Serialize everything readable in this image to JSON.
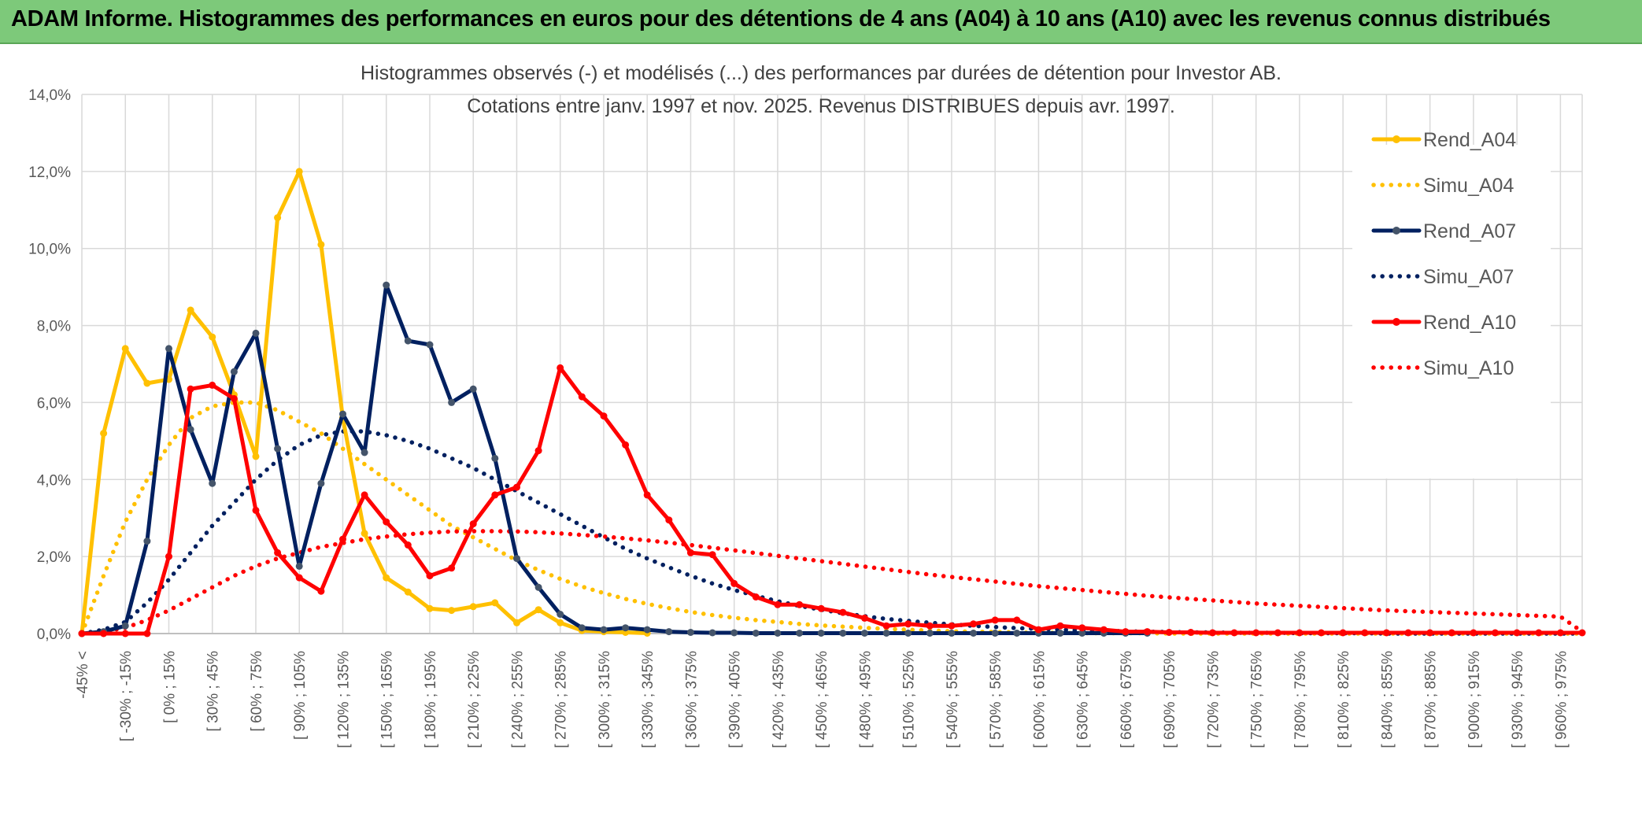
{
  "banner": {
    "title": "ADAM Informe. Histogrammes des performances en euros pour des détentions de 4 ans (A04) à 10 ans (A10) avec les revenus connus distribués"
  },
  "colors": {
    "banner_bg": "#7dc97a",
    "a04": "#ffc000",
    "a07": "#002060",
    "a07_marker": "#44546a",
    "a10": "#ff0000",
    "grid": "#d9d9d9"
  },
  "chart_data": {
    "type": "line",
    "title": "Histogrammes observés (-) et modélisés (...) des performances par durées de détention pour Investor AB.",
    "subtitle": "Cotations entre janv. 1997 et nov. 2025. Revenus DISTRIBUES depuis avr. 1997.",
    "xlabel": "",
    "ylabel": "",
    "ylim": [
      0,
      14
    ],
    "y_ticks": [
      "0,0%",
      "2,0%",
      "4,0%",
      "6,0%",
      "8,0%",
      "10,0%",
      "12,0%",
      "14,0%"
    ],
    "grid": true,
    "legend_position": "right",
    "x_tick_labels": [
      "-45% <",
      "[ -30% ; -15%",
      "[ 0% ; 15%",
      "[ 30% ; 45%",
      "[ 60% ; 75%",
      "[ 90% ; 105%",
      "[ 120% ; 135%",
      "[ 150% ; 165%",
      "[ 180% ; 195%",
      "[ 210% ; 225%",
      "[ 240% ; 255%",
      "[ 270% ; 285%",
      "[ 300% ; 315%",
      "[ 330% ; 345%",
      "[ 360% ; 375%",
      "[ 390% ; 405%",
      "[ 420% ; 435%",
      "[ 450% ; 465%",
      "[ 480% ; 495%",
      "[ 510% ; 525%",
      "[ 540% ; 555%",
      "[ 570% ; 585%",
      "[ 600% ; 615%",
      "[ 630% ; 645%",
      "[ 660% ; 675%",
      "[ 690% ; 705%",
      "[ 720% ; 735%",
      "[ 750% ; 765%",
      "[ 780% ; 795%",
      "[ 810% ; 825%",
      "[ 840% ; 855%",
      "[ 870% ; 885%",
      "[ 900% ; 915%",
      "[ 930% ; 945%",
      "[ 960% ; 975%"
    ],
    "num_categories": 70,
    "series": [
      {
        "name": "Rend_A04",
        "style": "solid",
        "color": "#ffc000",
        "values": [
          0,
          5.2,
          7.4,
          6.5,
          6.6,
          8.4,
          7.7,
          6.2,
          4.6,
          10.8,
          12.0,
          10.1,
          5.6,
          2.6,
          1.45,
          1.08,
          0.65,
          0.6,
          0.7,
          0.8,
          0.28,
          0.62,
          0.28,
          0.08,
          0.05,
          0.03,
          0.01
        ]
      },
      {
        "name": "Simu_A04",
        "style": "dotted",
        "color": "#ffc000",
        "values": [
          0,
          1.5,
          2.9,
          4.0,
          4.9,
          5.6,
          5.9,
          6.0,
          6.0,
          5.8,
          5.5,
          5.2,
          4.8,
          4.4,
          4.0,
          3.6,
          3.2,
          2.8,
          2.5,
          2.2,
          1.9,
          1.65,
          1.42,
          1.22,
          1.05,
          0.9,
          0.77,
          0.66,
          0.56,
          0.48,
          0.41,
          0.35,
          0.3,
          0.25,
          0.21,
          0.18,
          0.15,
          0.12,
          0.1,
          0.08,
          0.06,
          0.05,
          0.04,
          0.03,
          0.02,
          0.02,
          0.01,
          0.01,
          0.01,
          0.01,
          0,
          0,
          0,
          0,
          0,
          0,
          0,
          0,
          0,
          0,
          0,
          0,
          0,
          0,
          0,
          0,
          0,
          0,
          0,
          0
        ]
      },
      {
        "name": "Rend_A07",
        "style": "solid",
        "color": "#002060",
        "values": [
          0,
          0.05,
          0.2,
          2.4,
          7.4,
          5.3,
          3.9,
          6.8,
          7.8,
          4.8,
          1.75,
          3.9,
          5.7,
          4.7,
          9.05,
          7.6,
          7.5,
          6.0,
          6.35,
          4.55,
          1.95,
          1.2,
          0.5,
          0.15,
          0.1,
          0.15,
          0.1,
          0.05,
          0.03,
          0.02,
          0.02,
          0.01,
          0.01,
          0.01,
          0.01,
          0.01,
          0.01,
          0.01,
          0.01,
          0.01,
          0.01,
          0.01,
          0.01,
          0.01,
          0.01,
          0.01,
          0.01,
          0.01,
          0.01,
          0.01
        ]
      },
      {
        "name": "Simu_A07",
        "style": "dotted",
        "color": "#002060",
        "values": [
          0,
          0.1,
          0.3,
          0.8,
          1.4,
          2.1,
          2.8,
          3.4,
          4.0,
          4.5,
          4.9,
          5.15,
          5.25,
          5.25,
          5.15,
          5.0,
          4.8,
          4.55,
          4.3,
          4.0,
          3.7,
          3.4,
          3.1,
          2.8,
          2.5,
          2.2,
          1.95,
          1.72,
          1.5,
          1.3,
          1.13,
          0.98,
          0.84,
          0.72,
          0.62,
          0.53,
          0.45,
          0.38,
          0.33,
          0.28,
          0.24,
          0.2,
          0.17,
          0.14,
          0.12,
          0.1,
          0.08,
          0.07,
          0.06,
          0.05,
          0.04,
          0.03,
          0.03,
          0.02,
          0.02,
          0.02,
          0.01,
          0.01,
          0.01,
          0.01,
          0,
          0,
          0,
          0,
          0,
          0,
          0,
          0,
          0,
          0
        ]
      },
      {
        "name": "Rend_A10",
        "style": "solid",
        "color": "#ff0000",
        "values": [
          0,
          0,
          0,
          0,
          2.0,
          6.35,
          6.45,
          6.1,
          3.2,
          2.1,
          1.45,
          1.1,
          2.45,
          3.6,
          2.9,
          2.3,
          1.5,
          1.7,
          2.85,
          3.6,
          3.8,
          4.75,
          6.9,
          6.15,
          5.65,
          4.9,
          3.6,
          2.95,
          2.1,
          2.05,
          1.3,
          0.95,
          0.75,
          0.75,
          0.65,
          0.55,
          0.4,
          0.2,
          0.25,
          0.2,
          0.2,
          0.25,
          0.35,
          0.35,
          0.1,
          0.2,
          0.15,
          0.1,
          0.05,
          0.05,
          0.03,
          0.03,
          0.02,
          0.02,
          0.02,
          0.02,
          0.02,
          0.02,
          0.02,
          0.02,
          0.02,
          0.02,
          0.02,
          0.02,
          0.02,
          0.02,
          0.02,
          0.02,
          0.02,
          0.02
        ]
      },
      {
        "name": "Simu_A10",
        "style": "dotted",
        "color": "#ff0000",
        "values": [
          0,
          0.05,
          0.15,
          0.35,
          0.6,
          0.9,
          1.2,
          1.5,
          1.75,
          1.95,
          2.1,
          2.25,
          2.35,
          2.45,
          2.52,
          2.58,
          2.62,
          2.65,
          2.66,
          2.66,
          2.65,
          2.63,
          2.6,
          2.56,
          2.52,
          2.47,
          2.42,
          2.36,
          2.3,
          2.23,
          2.16,
          2.09,
          2.02,
          1.95,
          1.88,
          1.81,
          1.74,
          1.67,
          1.6,
          1.53,
          1.47,
          1.41,
          1.35,
          1.29,
          1.23,
          1.18,
          1.13,
          1.08,
          1.03,
          0.98,
          0.94,
          0.9,
          0.86,
          0.82,
          0.78,
          0.75,
          0.72,
          0.69,
          0.66,
          0.63,
          0.6,
          0.58,
          0.56,
          0.54,
          0.52,
          0.5,
          0.48,
          0.46,
          0.44,
          0.05
        ]
      }
    ]
  }
}
